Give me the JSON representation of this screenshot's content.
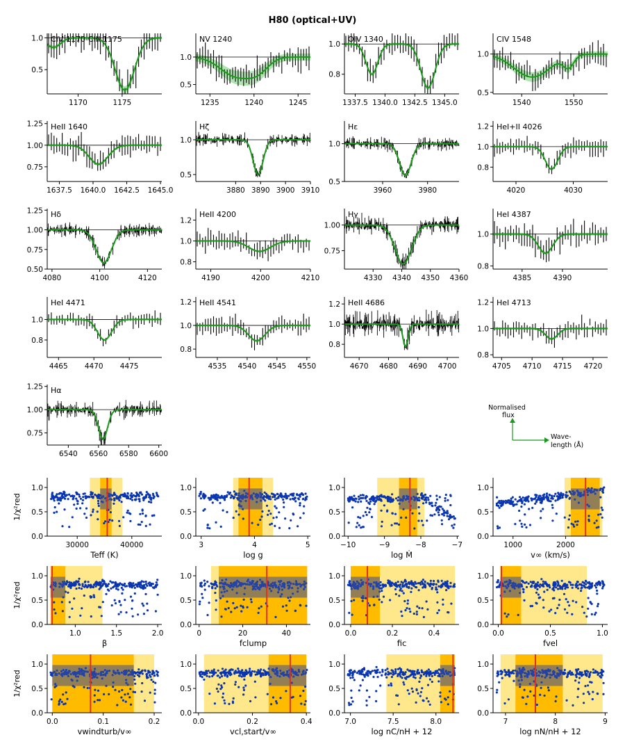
{
  "title": "H80 (optical+UV)",
  "colors": {
    "model": "#1a9a1a",
    "band": "#8fd98f",
    "data": "#000000",
    "points": "#0a35b0",
    "best": "#e03020",
    "ci1": "#ffbb00",
    "ci2": "#ffe680",
    "overlay": "#3a4f9a"
  },
  "chart_data": {
    "type": "scatter",
    "spectral_panels": [
      {
        "label": "CIV 1170-CIII 1175",
        "xlim": [
          1166.5,
          1179.5
        ],
        "ylim": [
          0.12,
          1.07
        ],
        "xticks": [
          1170,
          1175
        ],
        "xtick_labels": [
          "1170",
          "1175"
        ],
        "yticks": [
          0.5,
          1.0
        ],
        "ytick_labels": [
          "0.5",
          "1.0"
        ],
        "lines": [
          {
            "center": 1175.3,
            "depth": 0.82,
            "width": 1.1
          },
          {
            "center": 1167.2,
            "depth": 0.15,
            "width": 0.8
          }
        ],
        "noise": 0.18,
        "data_style": "bars",
        "band": 0.05
      },
      {
        "label": "NV 1240",
        "xlim": [
          1233.4,
          1246.4
        ],
        "ylim": [
          0.33,
          1.43
        ],
        "xticks": [
          1235,
          1240,
          1245
        ],
        "xtick_labels": [
          "1235",
          "1240",
          "1245"
        ],
        "yticks": [
          0.5,
          1.0
        ],
        "ytick_labels": [
          "0.5",
          "1.0"
        ],
        "lines": [
          {
            "center": 1238.0,
            "depth": 0.35,
            "width": 1.8
          },
          {
            "center": 1240.5,
            "depth": 0.2,
            "width": 1.2
          }
        ],
        "noise": 0.18,
        "data_style": "bars",
        "band": 0.16
      },
      {
        "label": "OIV 1340",
        "xlim": [
          1336.6,
          1346.2
        ],
        "ylim": [
          0.67,
          1.07
        ],
        "xticks": [
          1337.5,
          1340.0,
          1342.5,
          1345.0
        ],
        "xtick_labels": [
          "1337.5",
          "1340.0",
          "1342.5",
          "1345.0"
        ],
        "yticks": [
          0.8,
          1.0
        ],
        "ytick_labels": [
          "0.8",
          "1.0"
        ],
        "lines": [
          {
            "center": 1338.9,
            "depth": 0.2,
            "width": 0.5
          },
          {
            "center": 1343.6,
            "depth": 0.29,
            "width": 0.6
          }
        ],
        "noise": 0.06,
        "data_style": "bars",
        "band": 0.02
      },
      {
        "label": "CIV 1548",
        "xlim": [
          1534.5,
          1556.5
        ],
        "ylim": [
          0.48,
          1.27
        ],
        "xticks": [
          1540,
          1550
        ],
        "xtick_labels": [
          "1540",
          "1550"
        ],
        "yticks": [
          0.5,
          1.0
        ],
        "ytick_labels": [
          "0.5",
          "1.0"
        ],
        "lines": [
          {
            "center": 1542,
            "depth": 0.3,
            "width": 3.5
          },
          {
            "center": 1549,
            "depth": 0.15,
            "width": 1.0
          }
        ],
        "noise": 0.12,
        "data_style": "bars",
        "band": 0.09
      },
      {
        "label": "HeII 1640",
        "xlim": [
          1636.6,
          1645.1
        ],
        "ylim": [
          0.58,
          1.28
        ],
        "xticks": [
          1637.5,
          1640.0,
          1642.5,
          1645.0
        ],
        "xtick_labels": [
          "1637.5",
          "1640.0",
          "1642.5",
          "1645.0"
        ],
        "yticks": [
          0.75,
          1.0,
          1.25
        ],
        "ytick_labels": [
          "0.75",
          "1.00",
          "1.25"
        ],
        "lines": [
          {
            "center": 1640.4,
            "depth": 0.22,
            "width": 0.7
          }
        ],
        "noise": 0.1,
        "data_style": "bars",
        "band": 0.03
      },
      {
        "label": "Hζ",
        "xlim": [
          3864,
          3910
        ],
        "ylim": [
          0.4,
          1.27
        ],
        "xticks": [
          3880,
          3890,
          3900,
          3910
        ],
        "xtick_labels": [
          "3880",
          "3890",
          "3900",
          "3910"
        ],
        "yticks": [
          0.5,
          1.0
        ],
        "ytick_labels": [
          "0.5",
          "1.0"
        ],
        "lines": [
          {
            "center": 3889.0,
            "depth": 0.5,
            "width": 2.0
          }
        ],
        "noise": 0.05,
        "data_style": "dense",
        "band": 0.01
      },
      {
        "label": "Hε",
        "xlim": [
          3943,
          3994
        ],
        "ylim": [
          0.5,
          1.3
        ],
        "xticks": [
          3960,
          3980
        ],
        "xtick_labels": [
          "3960",
          "3980"
        ],
        "yticks": [
          0.5,
          1.0
        ],
        "ytick_labels": [
          "0.5",
          "1.0"
        ],
        "lines": [
          {
            "center": 3970.1,
            "depth": 0.42,
            "width": 2.6
          }
        ],
        "noise": 0.05,
        "data_style": "dense",
        "band": 0.01
      },
      {
        "label": "HeI+II 4026",
        "xlim": [
          4016,
          4036
        ],
        "ylim": [
          0.66,
          1.25
        ],
        "xticks": [
          4020,
          4030
        ],
        "xtick_labels": [
          "4020",
          "4030"
        ],
        "yticks": [
          0.8,
          1.0,
          1.2
        ],
        "ytick_labels": [
          "0.8",
          "1.0",
          "1.2"
        ],
        "lines": [
          {
            "center": 4026.2,
            "depth": 0.22,
            "width": 1.1
          }
        ],
        "noise": 0.06,
        "data_style": "bars",
        "band": 0.02
      },
      {
        "label": "Hδ",
        "xlim": [
          4078,
          4126
        ],
        "ylim": [
          0.5,
          1.27
        ],
        "xticks": [
          4080,
          4100,
          4120
        ],
        "xtick_labels": [
          "4080",
          "4100",
          "4120"
        ],
        "yticks": [
          0.5,
          0.75,
          1.0,
          1.25
        ],
        "ytick_labels": [
          "0.50",
          "0.75",
          "1.00",
          "1.25"
        ],
        "lines": [
          {
            "center": 4101.7,
            "depth": 0.42,
            "width": 3.2
          }
        ],
        "noise": 0.05,
        "data_style": "dense",
        "band": 0.01
      },
      {
        "label": "HeII 4200",
        "xlim": [
          4187,
          4210
        ],
        "ylim": [
          0.73,
          1.31
        ],
        "xticks": [
          4190,
          4200,
          4210
        ],
        "xtick_labels": [
          "4190",
          "4200",
          "4210"
        ],
        "yticks": [
          0.8,
          1.0,
          1.2
        ],
        "ytick_labels": [
          "0.8",
          "1.0",
          "1.2"
        ],
        "lines": [
          {
            "center": 4199.8,
            "depth": 0.1,
            "width": 2.2
          }
        ],
        "noise": 0.07,
        "data_style": "bars",
        "band": 0.02
      },
      {
        "label": "Hγ",
        "xlim": [
          4320,
          4360
        ],
        "ylim": [
          0.57,
          1.16
        ],
        "xticks": [
          4330,
          4340,
          4350,
          4360
        ],
        "xtick_labels": [
          "4330",
          "4340",
          "4350",
          "4360"
        ],
        "yticks": [
          0.75,
          1.0
        ],
        "ytick_labels": [
          "0.75",
          "1.00"
        ],
        "lines": [
          {
            "center": 4340.5,
            "depth": 0.38,
            "width": 2.9
          }
        ],
        "noise": 0.05,
        "data_style": "dense",
        "band": 0.01
      },
      {
        "label": "HeI 4387",
        "xlim": [
          4381.4,
          4395.6
        ],
        "ylim": [
          0.78,
          1.16
        ],
        "xticks": [
          4385,
          4390
        ],
        "xtick_labels": [
          "4385",
          "4390"
        ],
        "yticks": [
          0.8,
          1.0
        ],
        "ytick_labels": [
          "0.8",
          "1.0"
        ],
        "lines": [
          {
            "center": 4387.9,
            "depth": 0.12,
            "width": 0.9
          }
        ],
        "noise": 0.06,
        "data_style": "bars",
        "band": 0.02
      },
      {
        "label": "HeI 4471",
        "xlim": [
          4463.4,
          4479.6
        ],
        "ylim": [
          0.63,
          1.22
        ],
        "xticks": [
          4465,
          4470,
          4475
        ],
        "xtick_labels": [
          "4465",
          "4470",
          "4475"
        ],
        "yticks": [
          0.8,
          1.0
        ],
        "ytick_labels": [
          "0.8",
          "1.0"
        ],
        "lines": [
          {
            "center": 4471.5,
            "depth": 0.2,
            "width": 1.0
          }
        ],
        "noise": 0.05,
        "data_style": "bars",
        "band": 0.02
      },
      {
        "label": "HeII 4541",
        "xlim": [
          4531.4,
          4550.6
        ],
        "ylim": [
          0.73,
          1.24
        ],
        "xticks": [
          4535,
          4540,
          4545,
          4550
        ],
        "xtick_labels": [
          "4535",
          "4540",
          "4545",
          "4550"
        ],
        "yticks": [
          0.8,
          1.0,
          1.2
        ],
        "ytick_labels": [
          "0.8",
          "1.0",
          "1.2"
        ],
        "lines": [
          {
            "center": 4541.6,
            "depth": 0.13,
            "width": 1.4
          }
        ],
        "noise": 0.06,
        "data_style": "bars",
        "band": 0.02
      },
      {
        "label": "HeII 4686",
        "xlim": [
          4665,
          4704
        ],
        "ylim": [
          0.67,
          1.27
        ],
        "xticks": [
          4670,
          4680,
          4690,
          4700
        ],
        "xtick_labels": [
          "4670",
          "4680",
          "4690",
          "4700"
        ],
        "yticks": [
          0.8,
          1.0,
          1.2
        ],
        "ytick_labels": [
          "0.8",
          "1.0",
          "1.2"
        ],
        "lines": [
          {
            "center": 4685.8,
            "depth": 0.22,
            "width": 0.9
          }
        ],
        "noise": 0.07,
        "data_style": "dense",
        "band": 0.01
      },
      {
        "label": "HeI 4713",
        "xlim": [
          4703.6,
          4722.4
        ],
        "ylim": [
          0.78,
          1.24
        ],
        "xticks": [
          4705,
          4710,
          4715,
          4720
        ],
        "xtick_labels": [
          "4705",
          "4710",
          "4715",
          "4720"
        ],
        "yticks": [
          0.8,
          1.0,
          1.2
        ],
        "ytick_labels": [
          "0.8",
          "1.0",
          "1.2"
        ],
        "lines": [
          {
            "center": 4713.2,
            "depth": 0.08,
            "width": 1.0
          }
        ],
        "noise": 0.05,
        "data_style": "bars",
        "band": 0.02
      },
      {
        "label": "Hα",
        "xlim": [
          6526,
          6602
        ],
        "ylim": [
          0.62,
          1.27
        ],
        "xticks": [
          6540,
          6560,
          6580,
          6600
        ],
        "xtick_labels": [
          "6540",
          "6560",
          "6580",
          "6600"
        ],
        "yticks": [
          0.75,
          1.0,
          1.25
        ],
        "ytick_labels": [
          "0.75",
          "1.00",
          "1.25"
        ],
        "lines": [
          {
            "center": 6563.0,
            "depth": 0.32,
            "width": 3.0
          }
        ],
        "noise": 0.05,
        "data_style": "dense",
        "band": 0.01
      }
    ],
    "legend_arrows": {
      "y_label_line1": "Normalised",
      "y_label_line2": "flux",
      "x_label_line1": "Wave-",
      "x_label_line2": "length (Å)"
    },
    "fitness_ylabel": "1/χ²red",
    "parameter_panels": [
      {
        "xlabel": "Teff (K)",
        "xlim": [
          24500,
          45500
        ],
        "xticks": [
          30000,
          40000
        ],
        "xtick_labels": [
          "30000",
          "40000"
        ],
        "best": 35500,
        "ci1": [
          34200,
          36300
        ],
        "ci2": [
          32300,
          38300
        ],
        "profile": "flat"
      },
      {
        "xlabel": "log g",
        "xlim": [
          2.9,
          5.05
        ],
        "xticks": [
          3,
          4,
          5
        ],
        "xtick_labels": [
          "3",
          "4",
          "5"
        ],
        "best": 3.9,
        "ci1": [
          3.7,
          4.15
        ],
        "ci2": [
          3.6,
          4.35
        ],
        "profile": "flat"
      },
      {
        "xlabel": "log Ṁ",
        "xlim": [
          -10.1,
          -6.95
        ],
        "xticks": [
          -10,
          -9,
          -8,
          -7
        ],
        "xtick_labels": [
          "−10",
          "−9",
          "−8",
          "−7"
        ],
        "best": -8.3,
        "ci1": [
          -8.6,
          -8.1
        ],
        "ci2": [
          -9.2,
          -7.9
        ],
        "profile": "drop"
      },
      {
        "xlabel": "v∞ (km/s)",
        "xlim": [
          620,
          2800
        ],
        "xticks": [
          1000,
          2000
        ],
        "xtick_labels": [
          "1000",
          "2000"
        ],
        "best": 2380,
        "ci1": [
          2100,
          2650
        ],
        "ci2": [
          1980,
          2700
        ],
        "profile": "rise"
      },
      {
        "xlabel": "β",
        "xlim": [
          0.66,
          2.05
        ],
        "xticks": [
          1.0,
          1.5,
          2.0
        ],
        "xtick_labels": [
          "1.0",
          "1.5",
          "2.0"
        ],
        "best": 0.72,
        "ci1": [
          0.7,
          0.88
        ],
        "ci2": [
          0.7,
          1.33
        ],
        "profile": "flat"
      },
      {
        "xlabel": "fclump",
        "xlim": [
          -1.5,
          51
        ],
        "xticks": [
          0,
          20,
          40
        ],
        "xtick_labels": [
          "0",
          "20",
          "40"
        ],
        "best": 31,
        "ci1": [
          9,
          49.5
        ],
        "ci2": [
          5.5,
          49.5
        ],
        "profile": "flat"
      },
      {
        "xlabel": "fic",
        "xlim": [
          -0.03,
          0.52
        ],
        "xticks": [
          0.0,
          0.2,
          0.4
        ],
        "xtick_labels": [
          "0.0",
          "0.2",
          "0.4"
        ],
        "best": 0.08,
        "ci1": [
          0.0,
          0.14
        ],
        "ci2": [
          0.0,
          0.5
        ],
        "profile": "flat"
      },
      {
        "xlabel": "fvel",
        "xlim": [
          -0.05,
          1.05
        ],
        "xticks": [
          0.0,
          0.5,
          1.0
        ],
        "xtick_labels": [
          "0.0",
          "0.5",
          "1.0"
        ],
        "best": 0.03,
        "ci1": [
          0.02,
          0.22
        ],
        "ci2": [
          0.02,
          0.85
        ],
        "profile": "flat"
      },
      {
        "xlabel": "vwindturb/v∞",
        "xlim": [
          -0.01,
          0.215
        ],
        "xticks": [
          0.0,
          0.1,
          0.2
        ],
        "xtick_labels": [
          "0.0",
          "0.1",
          "0.2"
        ],
        "best": 0.075,
        "ci1": [
          0.0,
          0.16
        ],
        "ci2": [
          0.0,
          0.2
        ],
        "profile": "flat"
      },
      {
        "xlabel": "vcl,start/v∞",
        "xlim": [
          -0.01,
          0.415
        ],
        "xticks": [
          0.0,
          0.2,
          0.4
        ],
        "xtick_labels": [
          "0.0",
          "0.2",
          "0.4"
        ],
        "best": 0.34,
        "ci1": [
          0.26,
          0.4
        ],
        "ci2": [
          0.02,
          0.4
        ],
        "profile": "flat"
      },
      {
        "xlabel": "log nC/nH + 12",
        "xlim": [
          6.93,
          8.27
        ],
        "xticks": [
          7.0,
          7.5,
          8.0
        ],
        "xtick_labels": [
          "7.0",
          "7.5",
          "8.0"
        ],
        "best": 8.2,
        "ci1": [
          8.05,
          8.22
        ],
        "ci2": [
          7.42,
          8.22
        ],
        "profile": "flat"
      },
      {
        "xlabel": "log nN/nH + 12",
        "xlim": [
          6.75,
          9.05
        ],
        "xticks": [
          7,
          8,
          9
        ],
        "xtick_labels": [
          "7",
          "8",
          "9"
        ],
        "best": 7.6,
        "ci1": [
          7.2,
          8.15
        ],
        "ci2": [
          6.9,
          8.95
        ],
        "profile": "flat"
      }
    ],
    "fitness_ylim": [
      0.0,
      1.2
    ],
    "fitness_yticks": [
      0.0,
      0.5,
      1.0
    ],
    "fitness_ytick_labels": [
      "0.0",
      "0.5",
      "1.0"
    ]
  }
}
